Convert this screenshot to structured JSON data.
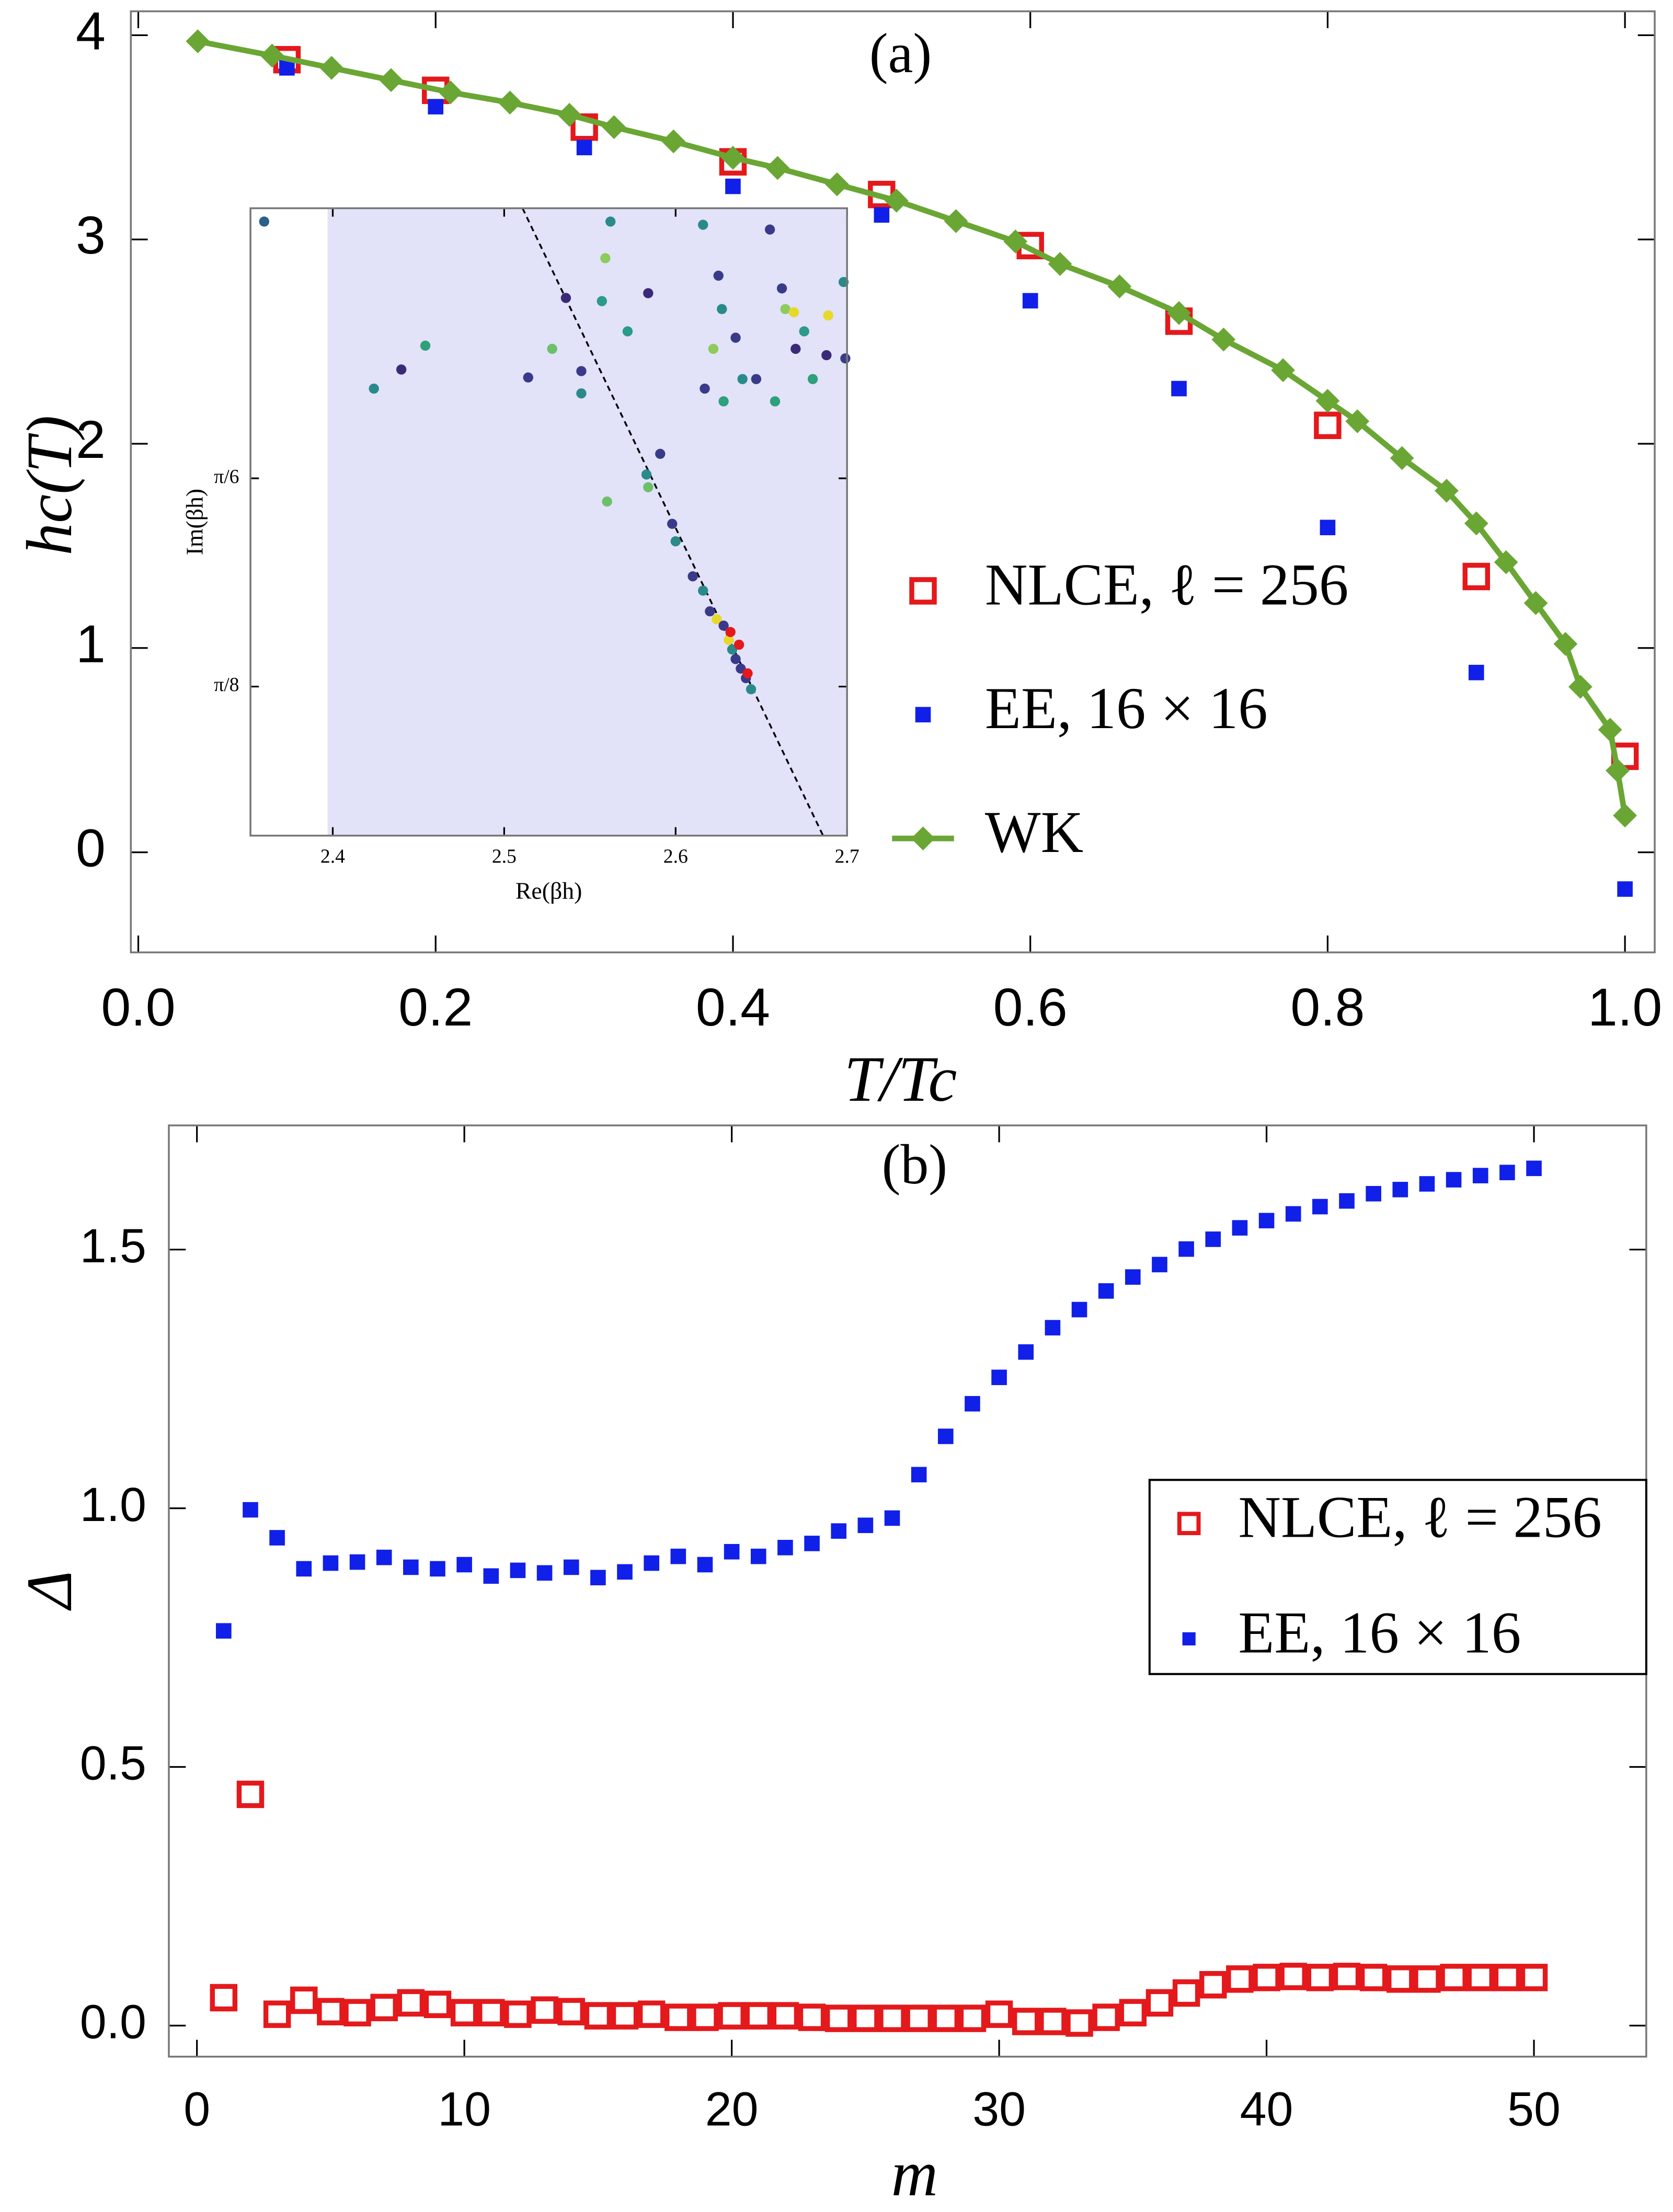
{
  "chart_data": [
    {
      "type": "scatter",
      "title": "(a)",
      "x_label": "T/Tc",
      "y_label": "hc(T)",
      "xlim": [
        -0.005,
        1.02
      ],
      "ylim": [
        -0.49,
        4.117
      ],
      "xticks": [
        {
          "value": 0,
          "label": "0.0"
        },
        0.2,
        0.4,
        0.6,
        0.8,
        {
          "value": 1,
          "label": "1.0"
        }
      ],
      "yticks": [
        0,
        1,
        2,
        3,
        4
      ],
      "legend": "right",
      "series": [
        {
          "name": "NLCE, ℓ = 256",
          "color": "#e3191c",
          "marker": "square-open",
          "x": [
            0.1,
            0.2,
            0.3,
            0.4,
            0.5,
            0.6,
            0.7,
            0.8,
            0.9,
            1.0
          ],
          "values": [
            3.88,
            3.73,
            3.55,
            3.38,
            3.22,
            2.97,
            2.6,
            2.09,
            1.35,
            0.47
          ]
        },
        {
          "name": "EE, 16 × 16",
          "color": "#1020e8",
          "marker": "square",
          "x": [
            0.1,
            0.2,
            0.3,
            0.4,
            0.5,
            0.6,
            0.7,
            0.8,
            0.9,
            1.0
          ],
          "values": [
            3.84,
            3.65,
            3.45,
            3.26,
            3.12,
            2.7,
            2.27,
            1.59,
            0.88,
            -0.18
          ]
        },
        {
          "name": "WK",
          "color": "#6aa634",
          "marker": "diamond",
          "line": true,
          "x": [
            0.04,
            0.09,
            0.13,
            0.17,
            0.21,
            0.25,
            0.29,
            0.32,
            0.36,
            0.4,
            0.43,
            0.47,
            0.51,
            0.55,
            0.59,
            0.62,
            0.66,
            0.7,
            0.73,
            0.77,
            0.8,
            0.82,
            0.85,
            0.88,
            0.9,
            0.92,
            0.94,
            0.96,
            0.97,
            0.99,
            0.995,
            1.0
          ],
          "values": [
            3.97,
            3.9,
            3.84,
            3.78,
            3.72,
            3.67,
            3.61,
            3.55,
            3.48,
            3.4,
            3.35,
            3.27,
            3.19,
            3.09,
            2.99,
            2.88,
            2.77,
            2.64,
            2.51,
            2.36,
            2.21,
            2.11,
            1.93,
            1.77,
            1.61,
            1.42,
            1.22,
            1.02,
            0.81,
            0.6,
            0.4,
            0.18
          ]
        }
      ]
    },
    {
      "type": "scatter",
      "x_label": "Re(βh)",
      "y_label": "Im(βh)",
      "xlim": [
        2.352,
        2.7
      ],
      "ylim": [
        0.299,
        0.6934
      ],
      "xticks": [
        2.4,
        2.5,
        2.6,
        2.7
      ],
      "yticks": [
        {
          "value": 0.5236,
          "label": "π/6"
        },
        {
          "value": 0.3927,
          "label": "π/8"
        }
      ],
      "shaded_region": {
        "xlim": [
          2.397,
          2.7
        ],
        "color": "#e2e2f9"
      },
      "series": [
        {
          "color": "#000000",
          "line": true,
          "style": "dashed",
          "x": [
            2.5107,
            2.686
          ],
          "values": [
            0.6934,
            0.299
          ]
        },
        {
          "marker": "dot",
          "x": [
            2.36,
            2.424,
            2.44,
            2.454,
            2.514,
            2.528,
            2.536,
            2.545,
            2.545,
            2.557,
            2.559,
            2.562,
            2.572,
            2.584,
            2.591,
            2.584,
            2.583,
            2.56,
            2.598,
            2.6,
            2.616,
            2.617,
            2.622,
            2.625,
            2.627,
            2.628,
            2.635,
            2.639,
            2.647,
            2.655,
            2.658,
            2.662,
            2.664,
            2.669,
            2.67,
            2.675,
            2.68,
            2.689,
            2.688,
            2.698,
            2.699,
            2.61,
            2.616,
            2.62,
            2.624,
            2.628,
            2.631,
            2.633,
            2.635,
            2.638,
            2.641,
            2.644,
            2.632,
            2.637,
            2.642
          ],
          "values": [
            0.685,
            0.58,
            0.592,
            0.607,
            0.587,
            0.605,
            0.637,
            0.591,
            0.577,
            0.635,
            0.662,
            0.685,
            0.616,
            0.64,
            0.539,
            0.518,
            0.526,
            0.509,
            0.495,
            0.484,
            0.683,
            0.58,
            0.605,
            0.651,
            0.63,
            0.572,
            0.612,
            0.586,
            0.586,
            0.68,
            0.572,
            0.643,
            0.63,
            0.628,
            0.605,
            0.616,
            0.586,
            0.626,
            0.601,
            0.647,
            0.599,
            0.462,
            0.453,
            0.44,
            0.435,
            0.431,
            0.422,
            0.416,
            0.41,
            0.404,
            0.398,
            0.391,
            0.427,
            0.419,
            0.401
          ],
          "colors": [
            "#2c5f8a",
            "#2a8a8a",
            "#3a2a78",
            "#2ea07a",
            "#3a3a8a",
            "#6cc06a",
            "#3a2a78",
            "#3a3a8a",
            "#2a8a8a",
            "#2a9a8a",
            "#8ccc5a",
            "#2a8a8a",
            "#2a9a8a",
            "#3a2a78",
            "#3a3a8a",
            "#6cc06a",
            "#2a8a8a",
            "#6cc06a",
            "#3a3a8a",
            "#2a8a8a",
            "#2a8a8a",
            "#3a3a8a",
            "#8ccc5a",
            "#3a3a8a",
            "#2a8a8a",
            "#2ea07a",
            "#3a3a8a",
            "#2a8a8a",
            "#3a3a8a",
            "#3a3a8a",
            "#2ea07a",
            "#3a3a8a",
            "#8ccc5a",
            "#e8d82a",
            "#3a2a78",
            "#2a9a8a",
            "#2ea07a",
            "#e8d82a",
            "#3a2a78",
            "#2a8a8a",
            "#3a3a8a",
            "#3a3a8a",
            "#2a8a8a",
            "#3a3a8a",
            "#e8d82a",
            "#3a3a8a",
            "#e8d82a",
            "#2a8a8a",
            "#3a3a8a",
            "#3a3a8a",
            "#3a3a8a",
            "#2a8a8a",
            "#e3191c",
            "#e3191c",
            "#e3191c"
          ]
        }
      ]
    },
    {
      "type": "scatter",
      "title": "(b)",
      "x_label": "m",
      "y_label": "Δ",
      "xlim": [
        -1.05,
        54.2
      ],
      "ylim": [
        -0.06,
        1.74
      ],
      "xticks": [
        0,
        10,
        20,
        30,
        40,
        50
      ],
      "yticks": [
        {
          "value": 0,
          "label": "0.0"
        },
        0.5,
        {
          "value": 1,
          "label": "1.0"
        },
        1.5
      ],
      "legend": "right",
      "legend_frame": true,
      "series": [
        {
          "name": "NLCE, ℓ = 256",
          "color": "#e3191c",
          "marker": "square-open",
          "x": [
            1,
            2,
            3,
            4,
            5,
            6,
            7,
            8,
            9,
            10,
            11,
            12,
            13,
            14,
            15,
            16,
            17,
            18,
            19,
            20,
            21,
            22,
            23,
            24,
            25,
            26,
            27,
            28,
            29,
            30,
            31,
            32,
            33,
            34,
            35,
            36,
            37,
            38,
            39,
            40,
            41,
            42,
            43,
            44,
            45,
            46,
            47,
            48,
            49,
            50
          ],
          "values": [
            0.054,
            0.447,
            0.022,
            0.049,
            0.027,
            0.025,
            0.035,
            0.044,
            0.041,
            0.025,
            0.025,
            0.022,
            0.03,
            0.027,
            0.019,
            0.019,
            0.022,
            0.016,
            0.016,
            0.019,
            0.019,
            0.019,
            0.016,
            0.014,
            0.014,
            0.014,
            0.014,
            0.014,
            0.014,
            0.022,
            0.008,
            0.008,
            0.005,
            0.016,
            0.025,
            0.044,
            0.063,
            0.079,
            0.09,
            0.093,
            0.095,
            0.093,
            0.095,
            0.093,
            0.09,
            0.09,
            0.093,
            0.093,
            0.093,
            0.093
          ]
        },
        {
          "name": "EE, 16 × 16",
          "color": "#1020e8",
          "marker": "square",
          "x": [
            1,
            2,
            3,
            4,
            5,
            6,
            7,
            8,
            9,
            10,
            11,
            12,
            13,
            14,
            15,
            16,
            17,
            18,
            19,
            20,
            21,
            22,
            23,
            24,
            25,
            26,
            27,
            28,
            29,
            30,
            31,
            32,
            33,
            34,
            35,
            36,
            37,
            38,
            39,
            40,
            41,
            42,
            43,
            44,
            45,
            46,
            47,
            48,
            49,
            50
          ],
          "values": [
            0.763,
            0.997,
            0.943,
            0.883,
            0.894,
            0.896,
            0.905,
            0.886,
            0.883,
            0.891,
            0.869,
            0.88,
            0.875,
            0.886,
            0.866,
            0.877,
            0.894,
            0.907,
            0.891,
            0.916,
            0.907,
            0.924,
            0.932,
            0.956,
            0.967,
            0.981,
            1.065,
            1.139,
            1.202,
            1.253,
            1.302,
            1.349,
            1.384,
            1.42,
            1.447,
            1.471,
            1.501,
            1.52,
            1.542,
            1.556,
            1.569,
            1.583,
            1.594,
            1.608,
            1.616,
            1.627,
            1.635,
            1.643,
            1.649,
            1.657
          ]
        }
      ]
    }
  ]
}
